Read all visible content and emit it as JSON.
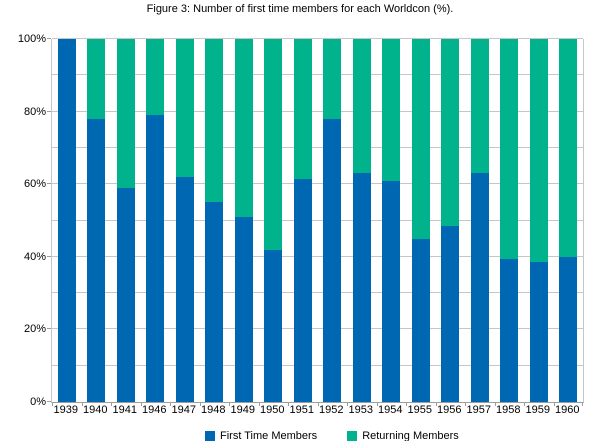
{
  "title": "Figure 3: Number of first time members for each Worldcon (%).",
  "colors": {
    "first_time": "#0068b3",
    "returning": "#00b38c",
    "gridline": "#c6c6c6",
    "axis": "#9e9e9e",
    "text": "#000000",
    "background": "#ffffff"
  },
  "legend": [
    {
      "label": "First Time Members",
      "color_key": "first_time"
    },
    {
      "label": "Returning Members",
      "color_key": "returning"
    }
  ],
  "chart_data": {
    "type": "bar",
    "stacked": true,
    "title": "Figure 3: Number of first time members for each Worldcon (%).",
    "xlabel": "",
    "ylabel": "",
    "categories": [
      "1939",
      "1940",
      "1941",
      "1946",
      "1947",
      "1948",
      "1949",
      "1950",
      "1951",
      "1952",
      "1953",
      "1954",
      "1955",
      "1956",
      "1957",
      "1958",
      "1959",
      "1960"
    ],
    "series": [
      {
        "name": "First Time Members",
        "values": [
          100,
          78,
          59,
          79,
          62,
          55,
          51,
          42,
          61.5,
          78,
          63,
          61,
          45,
          48.5,
          63,
          39.5,
          38.5,
          40
        ]
      },
      {
        "name": "Returning Members",
        "values": [
          0,
          22,
          41,
          21,
          38,
          45,
          49,
          58,
          38.5,
          22,
          37,
          39,
          55,
          51.5,
          37,
          60.5,
          61.5,
          60
        ]
      }
    ],
    "ylim": [
      0,
      100
    ],
    "yticks_major": [
      0,
      20,
      40,
      60,
      80,
      100
    ],
    "ytick_labels": [
      "0%",
      "20%",
      "40%",
      "60%",
      "80%",
      "100%"
    ],
    "gridline_step": 10,
    "grid": true,
    "legend_position": "bottom"
  }
}
